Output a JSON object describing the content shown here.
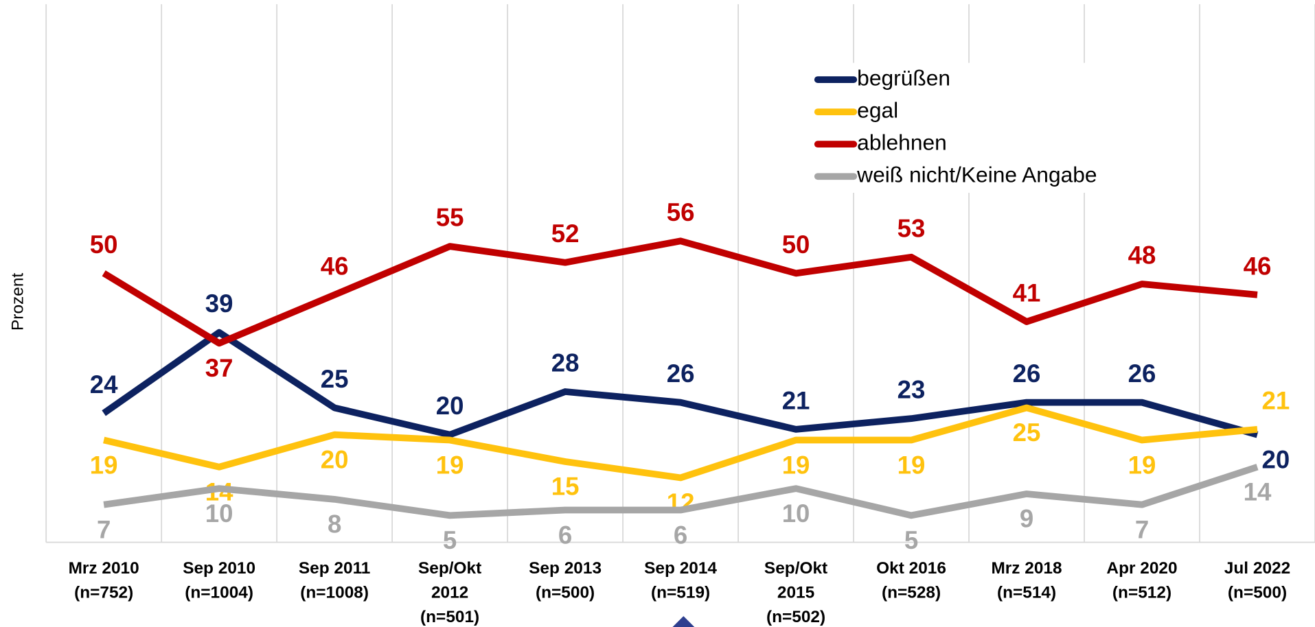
{
  "chart_data": {
    "type": "line",
    "y_label": "Prozent",
    "categories": [
      [
        "Mrz 2010",
        "(n=752)"
      ],
      [
        "Sep 2010",
        "(n=1004)"
      ],
      [
        "Sep 2011",
        "(n=1008)"
      ],
      [
        "Sep/Okt",
        "2012",
        "(n=501)"
      ],
      [
        "Sep 2013",
        "(n=500)"
      ],
      [
        "Sep 2014",
        "(n=519)"
      ],
      [
        "Sep/Okt",
        "2015",
        "(n=502)"
      ],
      [
        "Okt 2016",
        "(n=528)"
      ],
      [
        "Mrz 2018",
        "(n=514)"
      ],
      [
        "Apr 2020",
        "(n=512)"
      ],
      [
        "Jul 2022",
        "(n=500)"
      ]
    ],
    "series": [
      {
        "name": "begrüßen",
        "color": "#0d2260",
        "values": [
          24,
          39,
          25,
          20,
          28,
          26,
          21,
          23,
          26,
          26,
          20
        ]
      },
      {
        "name": "egal",
        "color": "#ffc20e",
        "values": [
          19,
          14,
          20,
          19,
          15,
          12,
          19,
          19,
          25,
          19,
          21
        ]
      },
      {
        "name": "ablehnen",
        "color": "#c00000",
        "values": [
          50,
          37,
          46,
          55,
          52,
          56,
          50,
          53,
          41,
          48,
          46
        ]
      },
      {
        "name": "weiß nicht/Keine Angabe",
        "color": "#a6a6a6",
        "values": [
          7,
          10,
          8,
          5,
          6,
          6,
          10,
          5,
          9,
          7,
          14
        ]
      }
    ],
    "ylim": [
      0,
      100
    ],
    "grid": true
  }
}
